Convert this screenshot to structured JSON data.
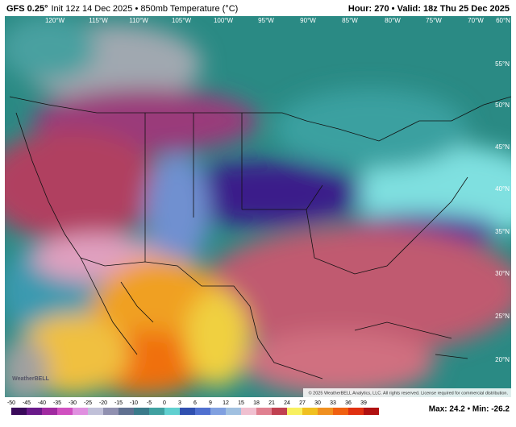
{
  "header": {
    "model": "GFS 0.25°",
    "subtitle": "Init 12z 14 Dec 2025 • 850mb Temperature (°C)",
    "valid": "Hour: 270 • Valid: 18z Thu 25 Dec 2025"
  },
  "map": {
    "lon_labels": [
      "120°W",
      "115°W",
      "110°W",
      "105°W",
      "100°W",
      "95°W",
      "90°W",
      "85°W",
      "80°W",
      "75°W",
      "70°W",
      "60°N"
    ],
    "lat_labels": [
      "55°N",
      "50°N",
      "45°N",
      "40°N",
      "35°N",
      "30°N",
      "25°N",
      "20°N"
    ],
    "logo": "WeatherBELL",
    "copyright": "© 2025 WeatherBELL Analytics, LLC. All rights reserved. License required for commercial distribution."
  },
  "colorbar": {
    "ticks": [
      -50,
      -45,
      -40,
      -35,
      -30,
      -25,
      -20,
      -15,
      -10,
      -5,
      0,
      3,
      6,
      9,
      12,
      15,
      18,
      21,
      24,
      27,
      30,
      33,
      36,
      39
    ],
    "colors": [
      "#3a0a5a",
      "#6a1a8a",
      "#a02aa0",
      "#d050c0",
      "#e090e0",
      "#c0c0d8",
      "#9090b0",
      "#607090",
      "#3a7a8a",
      "#40a0a0",
      "#60d0d0",
      "#3050b0",
      "#5070d0",
      "#80a0e0",
      "#a0c0e0",
      "#f0c0d0",
      "#e08090",
      "#c04050",
      "#f8f060",
      "#f0c020",
      "#f09020",
      "#f06010",
      "#e03010",
      "#b01010"
    ],
    "extremes": "Max: 24.2 • Min: -26.2"
  }
}
